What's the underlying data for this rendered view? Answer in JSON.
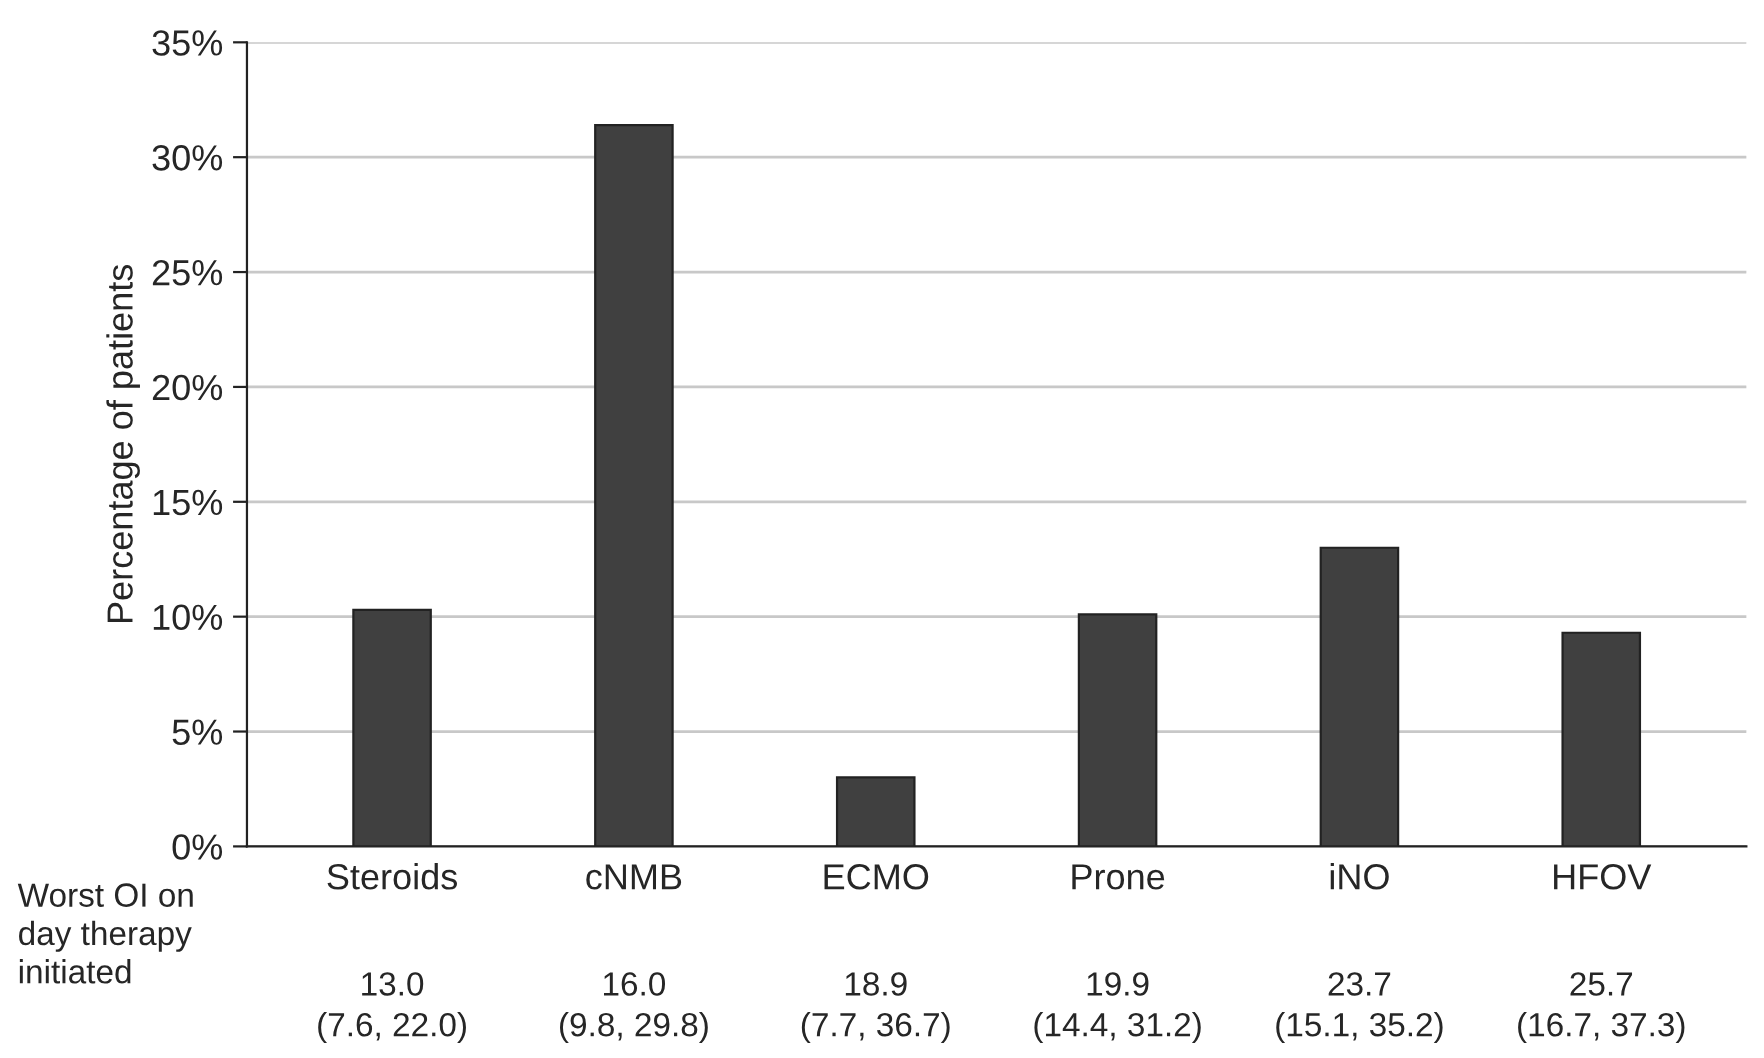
{
  "chart_data": {
    "type": "bar",
    "ylabel": "Percentage of patients",
    "categories": [
      "Steroids",
      "cNMB",
      "ECMO",
      "Prone",
      "iNO",
      "HFOV"
    ],
    "values": [
      10.3,
      31.4,
      3.0,
      10.1,
      13.0,
      9.3
    ],
    "color": "#404040",
    "ylim": [
      0,
      35
    ],
    "yticks": [
      {
        "value": 0,
        "label": "0%"
      },
      {
        "value": 5,
        "label": "5%"
      },
      {
        "value": 10,
        "label": "10%"
      },
      {
        "value": 15,
        "label": "15%"
      },
      {
        "value": 20,
        "label": "20%"
      },
      {
        "value": 25,
        "label": "25%"
      },
      {
        "value": 30,
        "label": "30%"
      },
      {
        "value": 35,
        "label": "35%"
      }
    ],
    "grid": "y",
    "annotations": [
      "Worst OI on\nday therapy\ninitiated",
      "13.0\n(7.6, 22.0)",
      "16.0\n(9.8, 29.8)",
      "18.9\n(7.7, 36.7)",
      "19.9\n(14.4, 31.2)",
      "23.7\n(15.1, 35.2)",
      "25.7\n(16.7, 37.3)"
    ]
  }
}
